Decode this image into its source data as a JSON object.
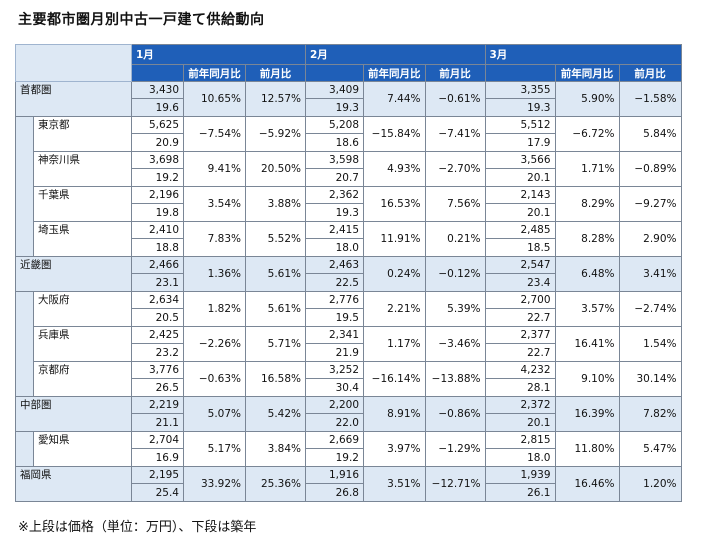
{
  "title": "主要都市圏月別中古一戸建て供給動向",
  "note": "※上段は価格（単位：万円）、下段は築年",
  "months": [
    "1月",
    "2月",
    "3月"
  ],
  "subheaders": {
    "yoy": "前年同月比",
    "mom": "前月比"
  },
  "rows": [
    {
      "name": "首都圏",
      "level": 0,
      "data": [
        {
          "price": "3,430",
          "age": "19.6",
          "yoy": "10.65%",
          "mom": "12.57%"
        },
        {
          "price": "3,409",
          "age": "19.3",
          "yoy": "7.44%",
          "mom": "−0.61%"
        },
        {
          "price": "3,355",
          "age": "19.3",
          "yoy": "5.90%",
          "mom": "−1.58%"
        }
      ]
    },
    {
      "name": "東京都",
      "level": 1,
      "data": [
        {
          "price": "5,625",
          "age": "20.9",
          "yoy": "−7.54%",
          "mom": "−5.92%"
        },
        {
          "price": "5,208",
          "age": "18.6",
          "yoy": "−15.84%",
          "mom": "−7.41%"
        },
        {
          "price": "5,512",
          "age": "17.9",
          "yoy": "−6.72%",
          "mom": "5.84%"
        }
      ]
    },
    {
      "name": "神奈川県",
      "level": 1,
      "data": [
        {
          "price": "3,698",
          "age": "19.2",
          "yoy": "9.41%",
          "mom": "20.50%"
        },
        {
          "price": "3,598",
          "age": "20.7",
          "yoy": "4.93%",
          "mom": "−2.70%"
        },
        {
          "price": "3,566",
          "age": "20.1",
          "yoy": "1.71%",
          "mom": "−0.89%"
        }
      ]
    },
    {
      "name": "千葉県",
      "level": 1,
      "data": [
        {
          "price": "2,196",
          "age": "19.8",
          "yoy": "3.54%",
          "mom": "3.88%"
        },
        {
          "price": "2,362",
          "age": "19.3",
          "yoy": "16.53%",
          "mom": "7.56%"
        },
        {
          "price": "2,143",
          "age": "20.1",
          "yoy": "8.29%",
          "mom": "−9.27%"
        }
      ]
    },
    {
      "name": "埼玉県",
      "level": 1,
      "data": [
        {
          "price": "2,410",
          "age": "18.8",
          "yoy": "7.83%",
          "mom": "5.52%"
        },
        {
          "price": "2,415",
          "age": "18.0",
          "yoy": "11.91%",
          "mom": "0.21%"
        },
        {
          "price": "2,485",
          "age": "18.5",
          "yoy": "8.28%",
          "mom": "2.90%"
        }
      ]
    },
    {
      "name": "近畿圏",
      "level": 0,
      "data": [
        {
          "price": "2,466",
          "age": "23.1",
          "yoy": "1.36%",
          "mom": "5.61%"
        },
        {
          "price": "2,463",
          "age": "22.5",
          "yoy": "0.24%",
          "mom": "−0.12%"
        },
        {
          "price": "2,547",
          "age": "23.4",
          "yoy": "6.48%",
          "mom": "3.41%"
        }
      ]
    },
    {
      "name": "大阪府",
      "level": 1,
      "data": [
        {
          "price": "2,634",
          "age": "20.5",
          "yoy": "1.82%",
          "mom": "5.61%"
        },
        {
          "price": "2,776",
          "age": "19.5",
          "yoy": "2.21%",
          "mom": "5.39%"
        },
        {
          "price": "2,700",
          "age": "22.7",
          "yoy": "3.57%",
          "mom": "−2.74%"
        }
      ]
    },
    {
      "name": "兵庫県",
      "level": 1,
      "data": [
        {
          "price": "2,425",
          "age": "23.2",
          "yoy": "−2.26%",
          "mom": "5.71%"
        },
        {
          "price": "2,341",
          "age": "21.9",
          "yoy": "1.17%",
          "mom": "−3.46%"
        },
        {
          "price": "2,377",
          "age": "22.7",
          "yoy": "16.41%",
          "mom": "1.54%"
        }
      ]
    },
    {
      "name": "京都府",
      "level": 1,
      "data": [
        {
          "price": "3,776",
          "age": "26.5",
          "yoy": "−0.63%",
          "mom": "16.58%"
        },
        {
          "price": "3,252",
          "age": "30.4",
          "yoy": "−16.14%",
          "mom": "−13.88%"
        },
        {
          "price": "4,232",
          "age": "28.1",
          "yoy": "9.10%",
          "mom": "30.14%"
        }
      ]
    },
    {
      "name": "中部圏",
      "level": 0,
      "data": [
        {
          "price": "2,219",
          "age": "21.1",
          "yoy": "5.07%",
          "mom": "5.42%"
        },
        {
          "price": "2,200",
          "age": "22.0",
          "yoy": "8.91%",
          "mom": "−0.86%"
        },
        {
          "price": "2,372",
          "age": "20.1",
          "yoy": "16.39%",
          "mom": "7.82%"
        }
      ]
    },
    {
      "name": "愛知県",
      "level": 1,
      "data": [
        {
          "price": "2,704",
          "age": "16.9",
          "yoy": "5.17%",
          "mom": "3.84%"
        },
        {
          "price": "2,669",
          "age": "19.2",
          "yoy": "3.97%",
          "mom": "−1.29%"
        },
        {
          "price": "2,815",
          "age": "18.0",
          "yoy": "11.80%",
          "mom": "5.47%"
        }
      ]
    },
    {
      "name": "福岡県",
      "level": 0,
      "data": [
        {
          "price": "2,195",
          "age": "25.4",
          "yoy": "33.92%",
          "mom": "25.36%"
        },
        {
          "price": "1,916",
          "age": "26.8",
          "yoy": "3.51%",
          "mom": "−12.71%"
        },
        {
          "price": "1,939",
          "age": "26.1",
          "yoy": "16.46%",
          "mom": "1.20%"
        }
      ]
    }
  ]
}
